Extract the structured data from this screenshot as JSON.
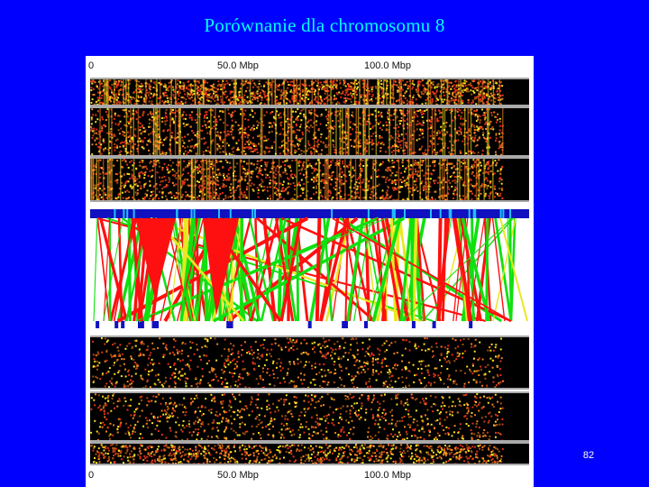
{
  "slide": {
    "title": "Porównanie dla chromosomu 8",
    "page_number": "82"
  },
  "figure": {
    "axis_labels": [
      "0",
      "50.0 Mbp",
      "100.0 Mbp"
    ],
    "colors": {
      "background": "#0000ff",
      "title": "#00ffff",
      "band_dark": "#000000",
      "dot_red": "#e0301a",
      "dot_orange": "#f08020",
      "dot_yellow": "#f4e020",
      "dot_brown": "#a05010",
      "link_red": "#ff1010",
      "link_green": "#10e010",
      "link_yellow": "#e8e820",
      "marker_blue": "#1010c0",
      "marker_cyan": "#20c0ff"
    }
  }
}
